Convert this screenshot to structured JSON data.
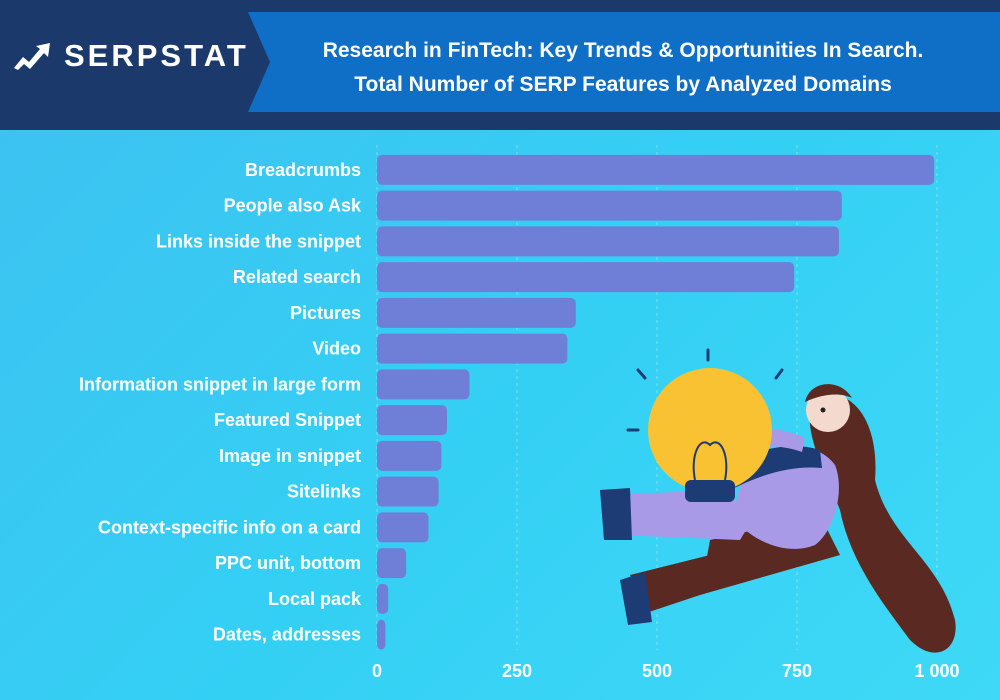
{
  "brand": {
    "logo_text": "SERPSTAT",
    "logo_icon": "serpstat-chart-arrow-icon"
  },
  "title": {
    "line1": "Research in FinTech: Key Trends & Opportunities In Search.",
    "line2": "Total Number of SERP Features by Analyzed Domains"
  },
  "colors": {
    "header_bg": "#1b3a6b",
    "banner_bg": "#0f6ec6",
    "bar": "#6f7fd8",
    "background": "#3ccff5"
  },
  "chart_data": {
    "type": "bar",
    "orientation": "horizontal",
    "categories": [
      "Breadcrumbs",
      "People also Ask",
      "Links inside the snippet",
      "Related search",
      "Pictures",
      "Video",
      "Information snippet in large form",
      "Featured Snippet",
      "Image in snippet",
      "Sitelinks",
      "Context-specific info on a card",
      "PPC unit, bottom",
      "Local pack",
      "Dates, addresses"
    ],
    "values": [
      995,
      830,
      825,
      745,
      355,
      340,
      165,
      125,
      115,
      110,
      92,
      52,
      20,
      15
    ],
    "xlim": [
      0,
      1000
    ],
    "xticks": [
      0,
      250,
      500,
      750,
      1000
    ],
    "xtick_labels": [
      "0",
      "250",
      "500",
      "750",
      "1 000"
    ],
    "grid": "vertical dashed"
  },
  "illustration": {
    "icon": "woman-holding-lightbulb-illustration"
  }
}
